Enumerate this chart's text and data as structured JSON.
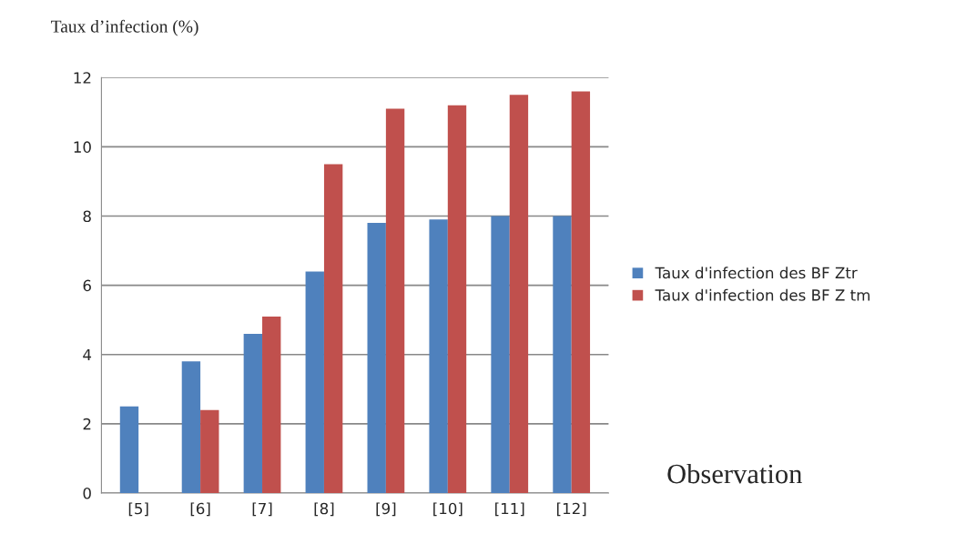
{
  "chart_data": {
    "type": "bar",
    "ylabel": "Taux d’infection (%)",
    "categories": [
      "[5]",
      "[6]",
      "[7]",
      "[8]",
      "[9]",
      "[10]",
      "[11]",
      "[12]"
    ],
    "series": [
      {
        "name": "Taux d'infection des BF Ztr",
        "color": "#4f81bd",
        "values": [
          2.5,
          3.8,
          4.6,
          6.4,
          7.8,
          7.9,
          8.0,
          8.0
        ]
      },
      {
        "name": "Taux d'infection des BF Z tm",
        "color": "#c0504d",
        "values": [
          0,
          2.4,
          5.1,
          9.5,
          11.1,
          11.2,
          11.5,
          11.6
        ]
      }
    ],
    "ylim": [
      0,
      12
    ],
    "yticks": [
      0,
      2,
      4,
      6,
      8,
      10,
      12
    ],
    "grid": "y",
    "legend": "right",
    "annotations": [
      "Observation"
    ]
  }
}
